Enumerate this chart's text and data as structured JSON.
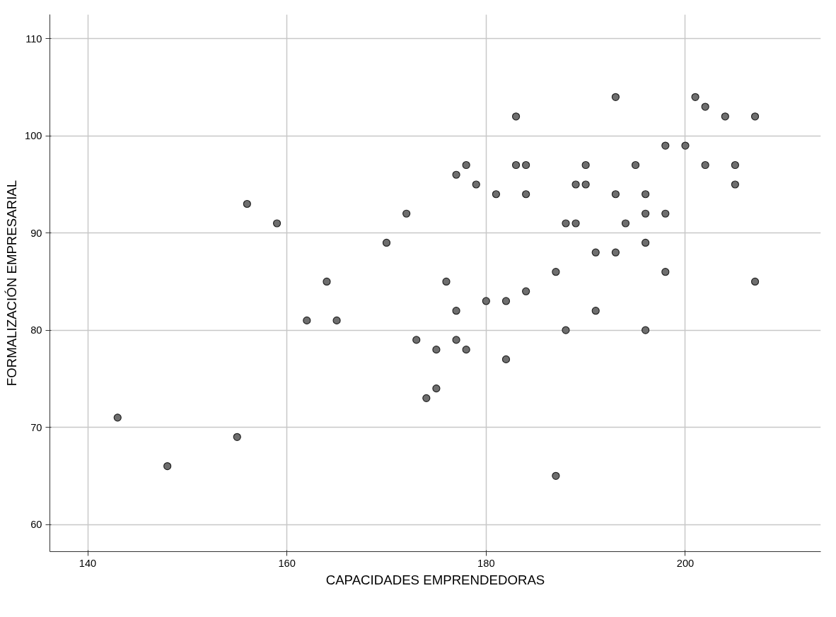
{
  "chart_data": {
    "type": "scatter",
    "xlabel": "CAPACIDADES EMPRENDEDORAS",
    "ylabel": "FORMALIZACIÓN EMPRESARIAL",
    "x": [
      143,
      148,
      155,
      156,
      159,
      162,
      164,
      165,
      170,
      172,
      173,
      174,
      175,
      175,
      176,
      177,
      177,
      177,
      178,
      178,
      179,
      180,
      181,
      182,
      182,
      183,
      183,
      184,
      184,
      184,
      187,
      187,
      188,
      188,
      189,
      189,
      190,
      190,
      191,
      191,
      193,
      193,
      193,
      194,
      195,
      196,
      196,
      196,
      196,
      198,
      198,
      198,
      200,
      201,
      202,
      202,
      204,
      205,
      205,
      207,
      207
    ],
    "values": [
      71,
      66,
      69,
      93,
      91,
      81,
      85,
      81,
      89,
      92,
      79,
      73,
      78,
      74,
      85,
      96,
      82,
      79,
      97,
      78,
      95,
      83,
      94,
      83,
      77,
      102,
      97,
      97,
      94,
      84,
      86,
      65,
      91,
      80,
      95,
      91,
      97,
      95,
      88,
      82,
      104,
      94,
      88,
      91,
      97,
      94,
      92,
      89,
      80,
      99,
      92,
      86,
      99,
      104,
      103,
      97,
      102,
      97,
      95,
      102,
      85
    ],
    "color": "#6e6e6e",
    "marker": "circle",
    "grid": true,
    "xlim": [
      136.2,
      213.6
    ],
    "ylim": [
      57.2,
      112.5
    ],
    "xticks": [
      140,
      160,
      180,
      200
    ],
    "yticks": [
      60,
      70,
      80,
      90,
      100,
      110
    ]
  }
}
